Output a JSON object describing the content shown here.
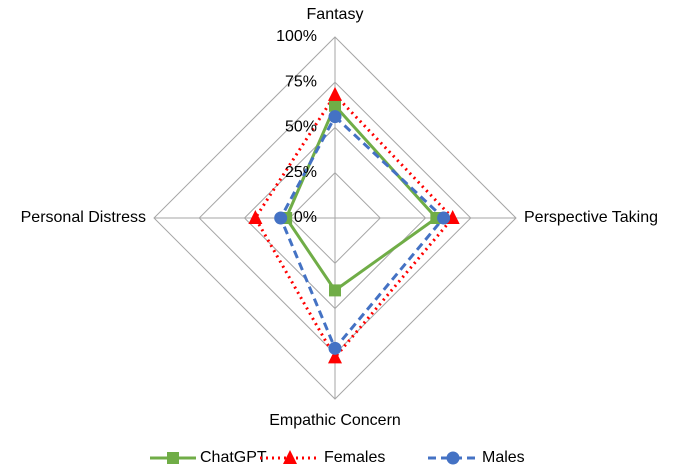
{
  "chart_data": {
    "type": "radar",
    "categories": [
      "Fantasy",
      "Perspective Taking",
      "Empathic Concern",
      "Personal Distress"
    ],
    "series": [
      {
        "name": "ChatGPT",
        "color": "#70ad47",
        "values": [
          62,
          56,
          40,
          27
        ]
      },
      {
        "name": "Females",
        "color": "#ff0000",
        "values": [
          68,
          65,
          77,
          44
        ]
      },
      {
        "name": "Males",
        "color": "#4472c4",
        "values": [
          56,
          60,
          72,
          30
        ]
      }
    ],
    "ylim": [
      0,
      100
    ],
    "yticks": [
      {
        "value": 0,
        "label": "0%"
      },
      {
        "value": 25,
        "label": "25%"
      },
      {
        "value": 50,
        "label": "50%"
      },
      {
        "value": 75,
        "label": "75%"
      },
      {
        "value": 100,
        "label": "100%"
      }
    ],
    "grid": true,
    "legend": "bottom"
  }
}
